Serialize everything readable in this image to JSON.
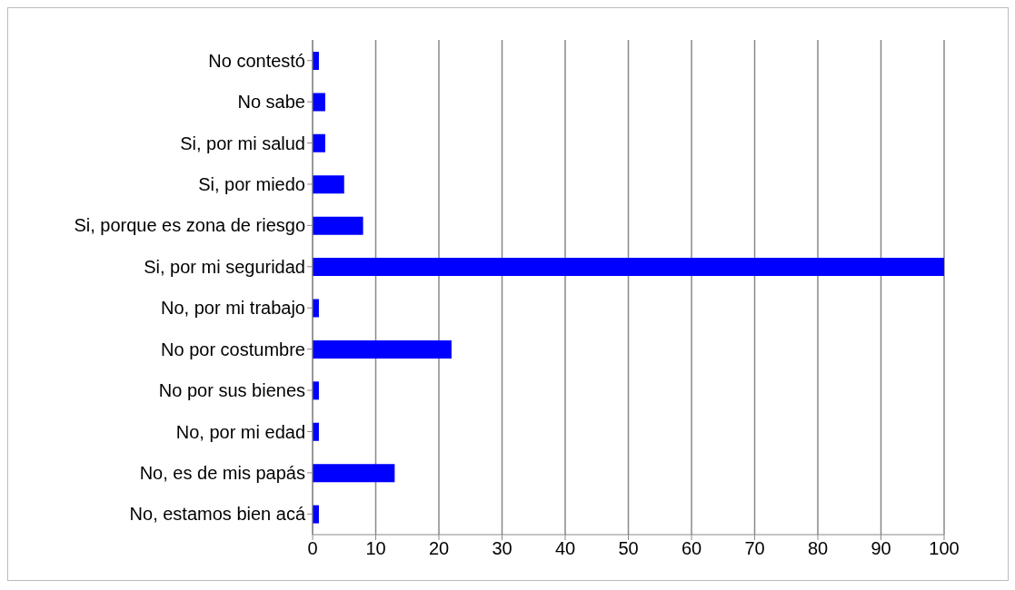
{
  "chart_data": {
    "type": "bar",
    "orientation": "horizontal",
    "categories": [
      "No contestó",
      "No sabe",
      "Si, por mi salud",
      "Si, por miedo",
      "Si, porque es zona de riesgo",
      "Si, por mi seguridad",
      "No, por mi trabajo",
      "No por costumbre",
      "No por sus bienes",
      "No, por mi edad",
      "No, es de mis papás",
      "No, estamos bien acá"
    ],
    "values": [
      1,
      2,
      2,
      5,
      8,
      100,
      1,
      22,
      1,
      1,
      13,
      1
    ],
    "color": "#0000ff",
    "xlim": [
      0,
      100
    ],
    "xticks": [
      0,
      10,
      20,
      30,
      40,
      50,
      60,
      70,
      80,
      90,
      100
    ],
    "grid": "x"
  }
}
